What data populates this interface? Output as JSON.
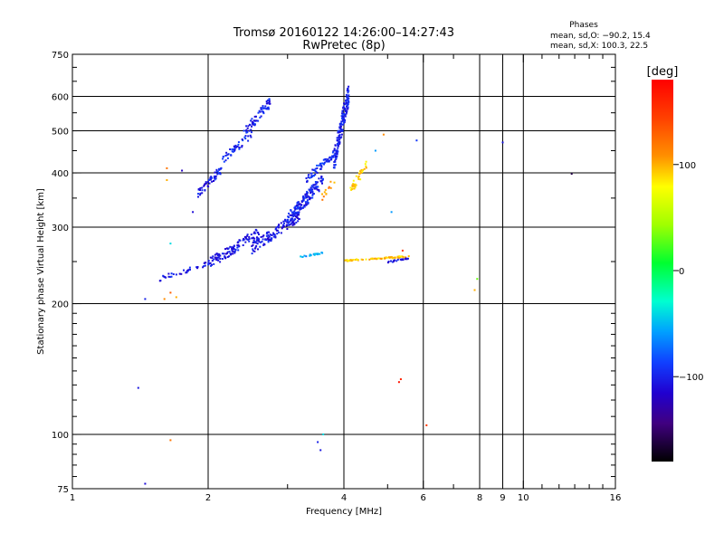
{
  "chart_data": {
    "type": "scatter",
    "title": "Tromsø 20160122 14:26:00–14:27:43",
    "subtitle": "RwPretec (8p)",
    "xlabel": "Frequency [MHz]",
    "ylabel": "Stationary phase Virtual Height [km]",
    "x_scale": "log",
    "y_scale": "log",
    "xlim": [
      1,
      16
    ],
    "ylim": [
      75,
      750
    ],
    "x_ticks": [
      1,
      2,
      4,
      6,
      8,
      9,
      10,
      16
    ],
    "x_tick_labels": [
      "1",
      "2",
      "4",
      "6",
      "8",
      "9",
      "10",
      "16"
    ],
    "y_ticks": [
      75,
      100,
      200,
      300,
      400,
      500,
      600,
      750
    ],
    "y_tick_labels": [
      "75",
      "100",
      "200",
      "300",
      "400",
      "500",
      "600",
      "750"
    ],
    "grid": true,
    "phases_box": {
      "title": "Phases",
      "line1": "mean, sd,O: −90.2, 15.4",
      "line2": "mean, sd,X: 100.3, 22.5"
    },
    "colorbar": {
      "label": "[deg]",
      "range": [
        -180,
        180
      ],
      "ticks": [
        100,
        0,
        -100
      ],
      "tick_labels": [
        "100",
        "0",
        "−100"
      ]
    },
    "clusters": [
      {
        "f": [
          1.55,
          2.0
        ],
        "h": [
          225,
          250
        ],
        "phase": -105,
        "n": 35
      },
      {
        "f": [
          1.9,
          2.15
        ],
        "h": [
          350,
          420
        ],
        "phase": -100,
        "n": 55
      },
      {
        "f": [
          2.15,
          2.5
        ],
        "h": [
          420,
          500
        ],
        "phase": -95,
        "n": 45
      },
      {
        "f": [
          2.4,
          2.75
        ],
        "h": [
          480,
          600
        ],
        "phase": -100,
        "n": 70
      },
      {
        "f": [
          2.0,
          2.6
        ],
        "h": [
          240,
          300
        ],
        "phase": -105,
        "n": 120
      },
      {
        "f": [
          2.5,
          3.2
        ],
        "h": [
          260,
          330
        ],
        "phase": -105,
        "n": 130
      },
      {
        "f": [
          3.0,
          3.6
        ],
        "h": [
          300,
          400
        ],
        "phase": -100,
        "n": 150
      },
      {
        "f": [
          3.3,
          3.8
        ],
        "h": [
          380,
          450
        ],
        "phase": -95,
        "n": 60
      },
      {
        "f": [
          3.8,
          4.1
        ],
        "h": [
          400,
          650
        ],
        "phase": -100,
        "n": 160
      },
      {
        "f": [
          4.1,
          4.5
        ],
        "h": [
          350,
          430
        ],
        "phase": 90,
        "n": 35
      },
      {
        "f": [
          4.0,
          5.6
        ],
        "h": [
          250,
          258
        ],
        "phase": 95,
        "n": 70
      },
      {
        "f": [
          3.2,
          3.6
        ],
        "h": [
          255,
          263
        ],
        "phase": -60,
        "n": 22
      },
      {
        "f": [
          5.0,
          5.6
        ],
        "h": [
          248,
          256
        ],
        "phase": -105,
        "n": 18
      },
      {
        "f": [
          3.55,
          3.85
        ],
        "h": [
          340,
          400
        ],
        "phase": 110,
        "n": 12
      }
    ],
    "sparse_points": [
      {
        "f": 1.45,
        "h": 205,
        "phase": -100
      },
      {
        "f": 1.6,
        "h": 205,
        "phase": 110
      },
      {
        "f": 1.65,
        "h": 212,
        "phase": 130
      },
      {
        "f": 1.7,
        "h": 207,
        "phase": 100
      },
      {
        "f": 1.62,
        "h": 410,
        "phase": 120
      },
      {
        "f": 1.62,
        "h": 385,
        "phase": 100
      },
      {
        "f": 1.65,
        "h": 275,
        "phase": -40
      },
      {
        "f": 1.4,
        "h": 128,
        "phase": -105
      },
      {
        "f": 1.45,
        "h": 77,
        "phase": -110
      },
      {
        "f": 1.65,
        "h": 97,
        "phase": 120
      },
      {
        "f": 3.5,
        "h": 96,
        "phase": -100
      },
      {
        "f": 3.55,
        "h": 92,
        "phase": -105
      },
      {
        "f": 3.6,
        "h": 100,
        "phase": -40
      },
      {
        "f": 5.3,
        "h": 132,
        "phase": 170
      },
      {
        "f": 5.35,
        "h": 134,
        "phase": 160
      },
      {
        "f": 6.1,
        "h": 105,
        "phase": 150
      },
      {
        "f": 7.8,
        "h": 215,
        "phase": 100
      },
      {
        "f": 7.9,
        "h": 228,
        "phase": 30
      },
      {
        "f": 9.0,
        "h": 470,
        "phase": -105
      },
      {
        "f": 12.8,
        "h": 398,
        "phase": -160
      },
      {
        "f": 5.8,
        "h": 475,
        "phase": -90
      },
      {
        "f": 5.1,
        "h": 325,
        "phase": -60
      },
      {
        "f": 5.4,
        "h": 265,
        "phase": 150
      },
      {
        "f": 4.7,
        "h": 450,
        "phase": -60
      },
      {
        "f": 4.9,
        "h": 490,
        "phase": 110
      },
      {
        "f": 1.75,
        "h": 405,
        "phase": -120
      },
      {
        "f": 1.85,
        "h": 325,
        "phase": -110
      }
    ]
  }
}
